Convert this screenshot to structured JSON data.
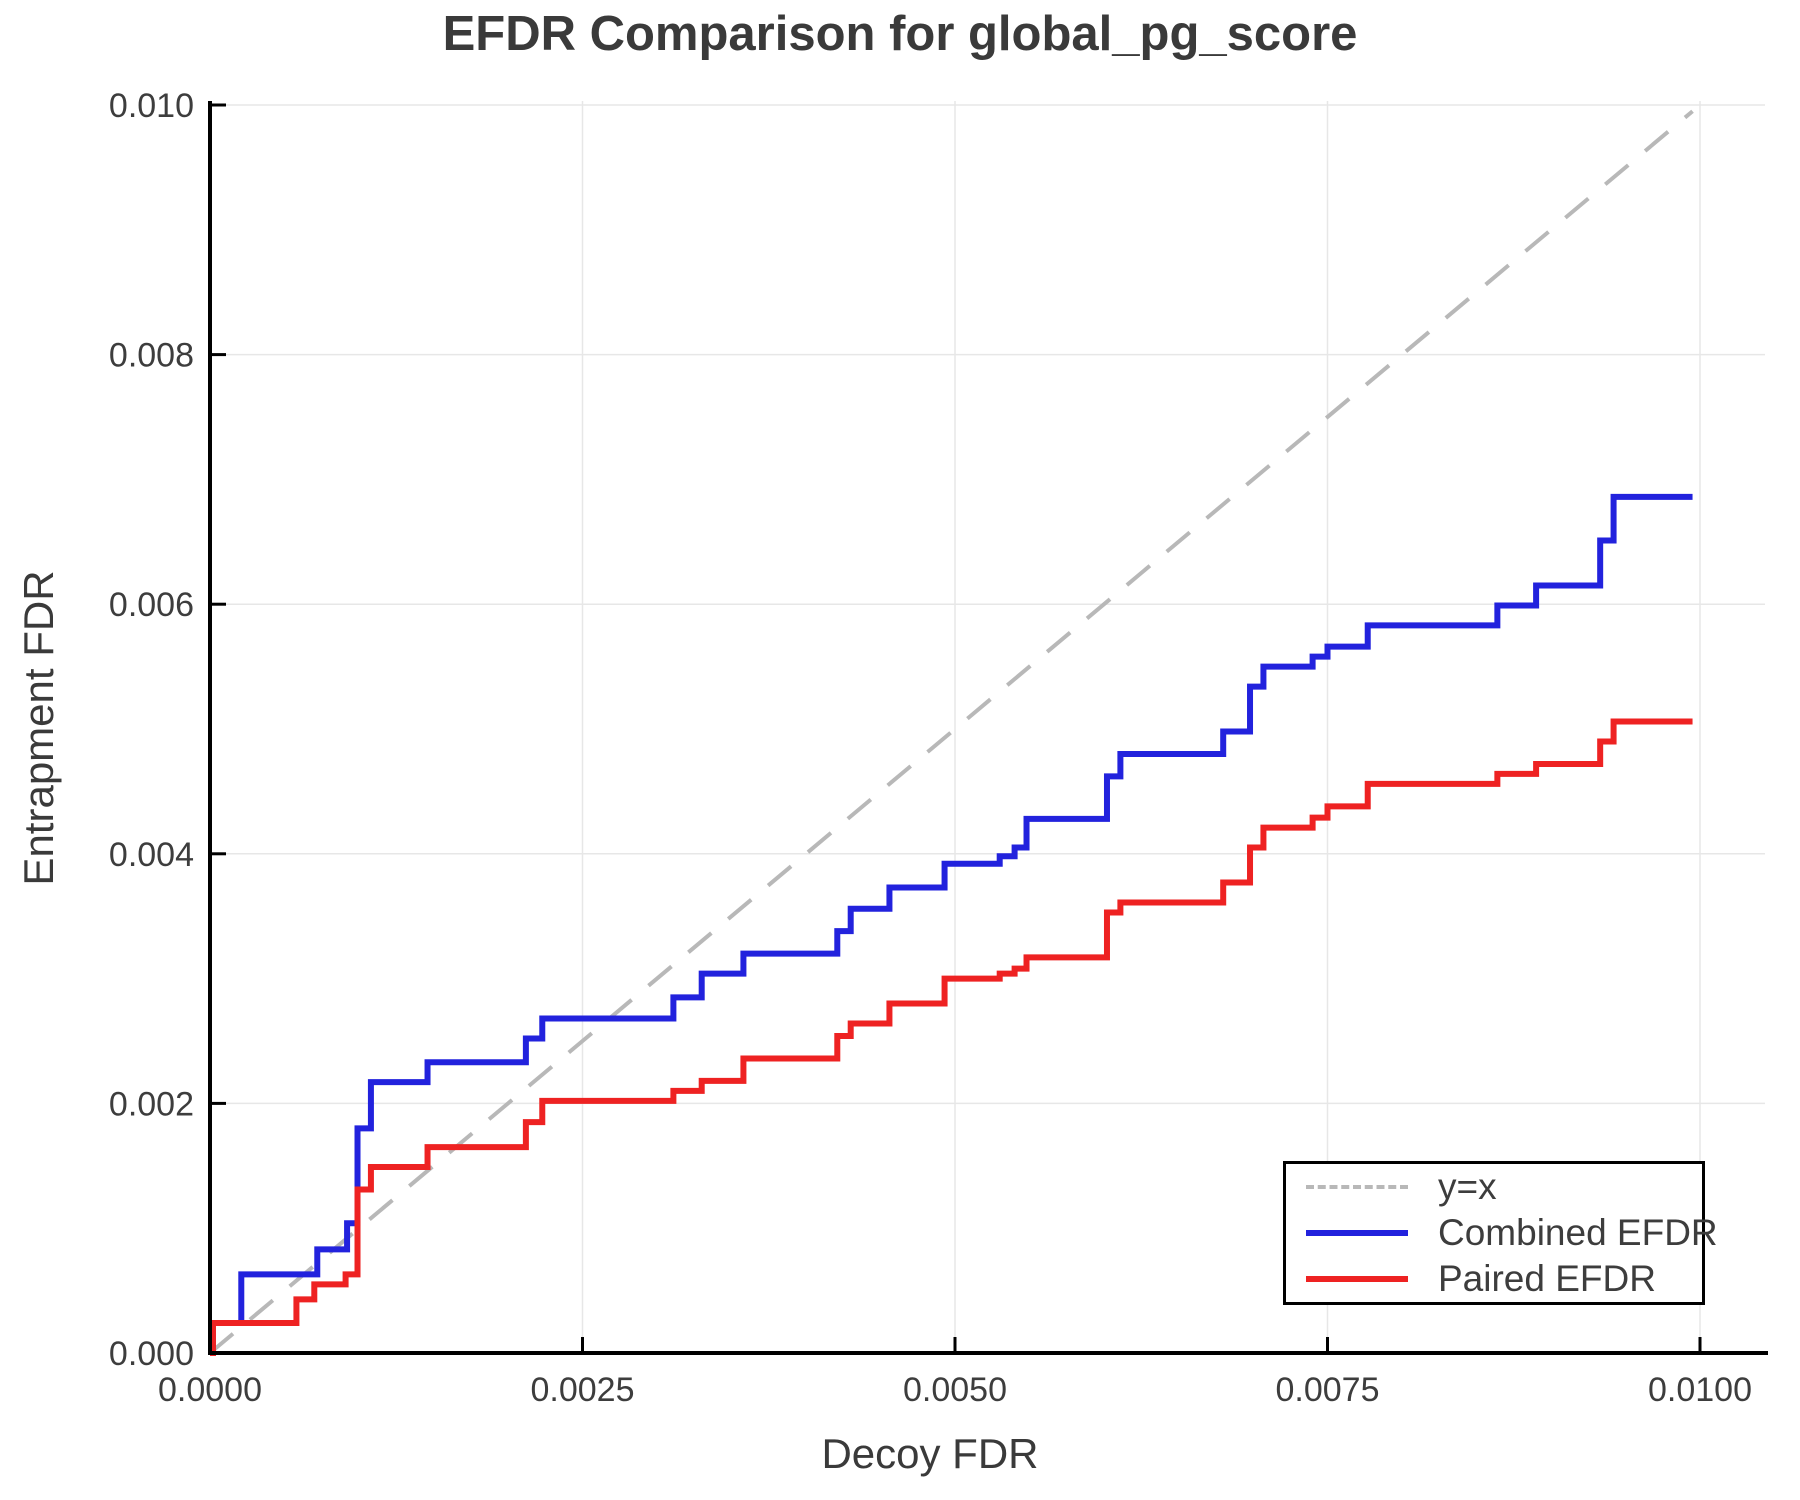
{
  "title": "EFDR Comparison for global_pg_score",
  "chart_data": {
    "type": "line",
    "title": "EFDR Comparison for global_pg_score",
    "xlabel": "Decoy FDR",
    "ylabel": "Entrapment FDR",
    "xlim": [
      0,
      0.01044
    ],
    "ylim": [
      0,
      0.01003
    ],
    "grid": true,
    "legend_position": "bottom-right",
    "xticks": {
      "values": [
        0.0,
        0.0025,
        0.005,
        0.0075,
        0.01
      ],
      "labels": [
        "0.0000",
        "0.0025",
        "0.0050",
        "0.0075",
        "0.0100"
      ]
    },
    "yticks": {
      "values": [
        0.0,
        0.002,
        0.004,
        0.006,
        0.008,
        0.01
      ],
      "labels": [
        "0.000",
        "0.002",
        "0.004",
        "0.006",
        "0.008",
        "0.010"
      ]
    },
    "colors": {
      "grid": "#e7e7e7",
      "spine": "#000000",
      "text": "#3d3d3d",
      "identity_line": "#b8b8b8",
      "combined": "#2222dd",
      "paired": "#ee2222"
    },
    "series": [
      {
        "name": "y=x",
        "style": "dashed_line",
        "color": "#b8b8b8",
        "points": [
          [
            0,
            0
          ],
          [
            0.00995,
            0.00995
          ]
        ]
      },
      {
        "name": "Combined EFDR",
        "style": "step",
        "color": "#2222dd",
        "points": [
          [
            0.0,
            0.0
          ],
          [
            2e-05,
            0.00024
          ],
          [
            0.00021,
            0.00063
          ],
          [
            0.00072,
            0.00083
          ],
          [
            0.00092,
            0.00104
          ],
          [
            0.00099,
            0.0018
          ],
          [
            0.00108,
            0.00217
          ],
          [
            0.00146,
            0.00233
          ],
          [
            0.00212,
            0.00252
          ],
          [
            0.00223,
            0.00268
          ],
          [
            0.00311,
            0.00285
          ],
          [
            0.0033,
            0.00304
          ],
          [
            0.00358,
            0.0032
          ],
          [
            0.00421,
            0.00338
          ],
          [
            0.0043,
            0.00356
          ],
          [
            0.00456,
            0.00373
          ],
          [
            0.00493,
            0.00392
          ],
          [
            0.0053,
            0.00398
          ],
          [
            0.0054,
            0.00405
          ],
          [
            0.00548,
            0.00428
          ],
          [
            0.00602,
            0.00462
          ],
          [
            0.00611,
            0.0048
          ],
          [
            0.0068,
            0.00498
          ],
          [
            0.00698,
            0.00534
          ],
          [
            0.00707,
            0.0055
          ],
          [
            0.0074,
            0.00558
          ],
          [
            0.0075,
            0.00566
          ],
          [
            0.00777,
            0.00583
          ],
          [
            0.00864,
            0.00599
          ],
          [
            0.0089,
            0.00615
          ],
          [
            0.00933,
            0.00651
          ],
          [
            0.00942,
            0.00686
          ],
          [
            0.00995,
            0.00686
          ]
        ]
      },
      {
        "name": "Paired EFDR",
        "style": "step",
        "color": "#ee2222",
        "points": [
          [
            0.0,
            0.0
          ],
          [
            2e-05,
            0.00024
          ],
          [
            0.00058,
            0.00043
          ],
          [
            0.0007,
            0.00055
          ],
          [
            0.00091,
            0.00063
          ],
          [
            0.00099,
            0.00131
          ],
          [
            0.00108,
            0.00149
          ],
          [
            0.00146,
            0.00165
          ],
          [
            0.00212,
            0.00185
          ],
          [
            0.00223,
            0.00202
          ],
          [
            0.00311,
            0.0021
          ],
          [
            0.0033,
            0.00218
          ],
          [
            0.00358,
            0.00236
          ],
          [
            0.00421,
            0.00254
          ],
          [
            0.0043,
            0.00264
          ],
          [
            0.00456,
            0.0028
          ],
          [
            0.00493,
            0.003
          ],
          [
            0.0053,
            0.00304
          ],
          [
            0.0054,
            0.00308
          ],
          [
            0.00548,
            0.00317
          ],
          [
            0.00602,
            0.00353
          ],
          [
            0.00611,
            0.00361
          ],
          [
            0.0068,
            0.00377
          ],
          [
            0.00698,
            0.00405
          ],
          [
            0.00707,
            0.00421
          ],
          [
            0.0074,
            0.00429
          ],
          [
            0.0075,
            0.00438
          ],
          [
            0.00777,
            0.00456
          ],
          [
            0.00864,
            0.00464
          ],
          [
            0.0089,
            0.00472
          ],
          [
            0.00933,
            0.0049
          ],
          [
            0.00942,
            0.00506
          ],
          [
            0.00995,
            0.00506
          ]
        ]
      }
    ]
  },
  "legend": {
    "items": [
      {
        "label": "y=x"
      },
      {
        "label": "Combined EFDR"
      },
      {
        "label": "Paired EFDR"
      }
    ]
  }
}
